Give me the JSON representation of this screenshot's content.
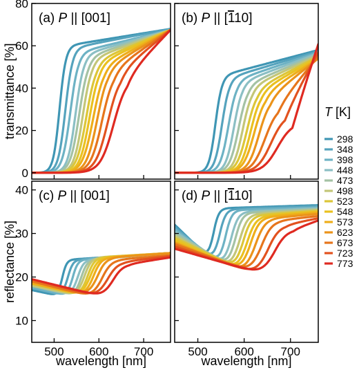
{
  "chart_data": [
    {
      "type": "line",
      "panel": "a",
      "label_prefix": "(a) ",
      "label_var": "P",
      "label_rel": " || [001]",
      "ylabel": "transmittance [%]",
      "xlim": [
        450,
        760
      ],
      "ylim": [
        -3,
        80
      ],
      "yticks": [
        0,
        20,
        40,
        60,
        80
      ],
      "xticks": [
        500,
        600,
        700
      ],
      "curve_model": "sigmoid",
      "series": [
        {
          "name": "298",
          "x0": 512,
          "w": 7,
          "A": 60.0,
          "B": 68.0
        },
        {
          "name": "348",
          "x0": 525,
          "w": 8,
          "A": 59.0,
          "B": 68.0
        },
        {
          "name": "398",
          "x0": 536,
          "w": 9,
          "A": 57.0,
          "B": 67.5
        },
        {
          "name": "448",
          "x0": 548,
          "w": 9,
          "A": 56.0,
          "B": 67.5
        },
        {
          "name": "473",
          "x0": 556,
          "w": 10,
          "A": 55.0,
          "B": 67.5
        },
        {
          "name": "498",
          "x0": 564,
          "w": 10,
          "A": 54.0,
          "B": 67.5
        },
        {
          "name": "523",
          "x0": 572,
          "w": 11,
          "A": 53.0,
          "B": 67.5
        },
        {
          "name": "548",
          "x0": 579,
          "w": 11,
          "A": 52.0,
          "B": 67.5
        },
        {
          "name": "573",
          "x0": 587,
          "w": 12,
          "A": 51.0,
          "B": 67.5
        },
        {
          "name": "623",
          "x0": 596,
          "w": 12,
          "A": 50.0,
          "B": 67.5
        },
        {
          "name": "673",
          "x0": 607,
          "w": 13,
          "A": 49.0,
          "B": 67.5
        },
        {
          "name": "723",
          "x0": 620,
          "w": 14,
          "A": 48.0,
          "B": 67.5
        },
        {
          "name": "773",
          "x0": 633,
          "w": 15,
          "A": 46.0,
          "B": 67.5
        }
      ]
    },
    {
      "type": "line",
      "panel": "b",
      "label_prefix": "(b) ",
      "label_var": "P",
      "label_rel": " || [",
      "label_bar": "1",
      "label_end": "10]",
      "xlim": [
        450,
        760
      ],
      "ylim": [
        -3,
        80
      ],
      "yticks": [
        0,
        20,
        40,
        60,
        80
      ],
      "xticks": [
        500,
        600,
        700
      ],
      "curve_model": "sigmoid",
      "series": [
        {
          "name": "298",
          "x0": 538,
          "w": 7,
          "A": 46.0,
          "B": 58.0
        },
        {
          "name": "348",
          "x0": 552,
          "w": 8,
          "A": 45.0,
          "B": 57.5
        },
        {
          "name": "398",
          "x0": 566,
          "w": 9,
          "A": 44.0,
          "B": 57.0
        },
        {
          "name": "448",
          "x0": 578,
          "w": 9,
          "A": 43.0,
          "B": 56.5
        },
        {
          "name": "473",
          "x0": 588,
          "w": 10,
          "A": 42.0,
          "B": 56.0
        },
        {
          "name": "498",
          "x0": 597,
          "w": 10,
          "A": 41.0,
          "B": 55.5
        },
        {
          "name": "523",
          "x0": 606,
          "w": 11,
          "A": 40.0,
          "B": 55.0
        },
        {
          "name": "548",
          "x0": 614,
          "w": 11,
          "A": 39.0,
          "B": 54.5
        },
        {
          "name": "573",
          "x0": 622,
          "w": 12,
          "A": 38.0,
          "B": 54.0
        },
        {
          "name": "623",
          "x0": 632,
          "w": 12,
          "A": 36.0,
          "B": 54.0
        },
        {
          "name": "673",
          "x0": 645,
          "w": 14,
          "A": 32.0,
          "B": 55.0
        },
        {
          "name": "723",
          "x0": 658,
          "w": 15,
          "A": 28.0,
          "B": 57.0
        },
        {
          "name": "773",
          "x0": 672,
          "w": 16,
          "A": 24.0,
          "B": 61.0
        }
      ]
    },
    {
      "type": "line",
      "panel": "c",
      "label_prefix": "(c) ",
      "label_var": "P",
      "label_rel": " || [001]",
      "ylabel": "reflectance [%]",
      "xlabel": "wavelength [nm]",
      "xlim": [
        450,
        760
      ],
      "ylim": [
        5,
        42
      ],
      "yticks": [
        10,
        20,
        30,
        40
      ],
      "xticks": [
        500,
        600,
        700
      ],
      "curve_model": "dip_step",
      "series": [
        {
          "name": "298",
          "x0": 518,
          "w": 5,
          "start": 17.0,
          "low": 15.5,
          "plateau": 24.0,
          "end": 25.5
        },
        {
          "name": "348",
          "x0": 530,
          "w": 6,
          "start": 17.5,
          "low": 15.5,
          "plateau": 24.0,
          "end": 25.5
        },
        {
          "name": "398",
          "x0": 541,
          "w": 6,
          "start": 17.5,
          "low": 15.5,
          "plateau": 24.0,
          "end": 25.5
        },
        {
          "name": "448",
          "x0": 552,
          "w": 7,
          "start": 18.0,
          "low": 15.5,
          "plateau": 24.0,
          "end": 25.5
        },
        {
          "name": "473",
          "x0": 560,
          "w": 7,
          "start": 18.0,
          "low": 15.5,
          "plateau": 24.0,
          "end": 25.5
        },
        {
          "name": "498",
          "x0": 567,
          "w": 8,
          "start": 18.0,
          "low": 15.5,
          "plateau": 24.5,
          "end": 25.5
        },
        {
          "name": "523",
          "x0": 574,
          "w": 8,
          "start": 18.5,
          "low": 15.5,
          "plateau": 24.5,
          "end": 25.5
        },
        {
          "name": "548",
          "x0": 580,
          "w": 9,
          "start": 18.5,
          "low": 15.5,
          "plateau": 24.5,
          "end": 25.5
        },
        {
          "name": "573",
          "x0": 587,
          "w": 9,
          "start": 18.5,
          "low": 15.5,
          "plateau": 24.5,
          "end": 25.5
        },
        {
          "name": "623",
          "x0": 596,
          "w": 10,
          "start": 19.0,
          "low": 15.5,
          "plateau": 24.5,
          "end": 25.5
        },
        {
          "name": "673",
          "x0": 606,
          "w": 11,
          "start": 19.0,
          "low": 15.0,
          "plateau": 24.0,
          "end": 25.0
        },
        {
          "name": "723",
          "x0": 618,
          "w": 12,
          "start": 19.5,
          "low": 15.0,
          "plateau": 23.5,
          "end": 24.8
        },
        {
          "name": "773",
          "x0": 630,
          "w": 12,
          "start": 19.5,
          "low": 15.0,
          "plateau": 23.0,
          "end": 24.5
        }
      ]
    },
    {
      "type": "line",
      "panel": "d",
      "label_prefix": "(d) ",
      "label_var": "P",
      "label_rel": " || [",
      "label_bar": "1",
      "label_end": "10]",
      "xlabel": "wavelength [nm]",
      "xlim": [
        450,
        760
      ],
      "ylim": [
        5,
        42
      ],
      "yticks": [
        10,
        20,
        30,
        40
      ],
      "xticks": [
        500,
        600,
        700
      ],
      "curve_model": "dip_step",
      "series": [
        {
          "name": "298",
          "x0": 533,
          "w": 6,
          "start": 32.0,
          "low": 23.5,
          "plateau": 35.8,
          "end": 36.5
        },
        {
          "name": "348",
          "x0": 546,
          "w": 7,
          "start": 31.5,
          "low": 23.0,
          "plateau": 35.6,
          "end": 36.3
        },
        {
          "name": "398",
          "x0": 559,
          "w": 7,
          "start": 31.0,
          "low": 22.5,
          "plateau": 35.4,
          "end": 36.0
        },
        {
          "name": "448",
          "x0": 571,
          "w": 8,
          "start": 30.5,
          "low": 22.0,
          "plateau": 35.0,
          "end": 35.8
        },
        {
          "name": "473",
          "x0": 580,
          "w": 8,
          "start": 30.0,
          "low": 22.0,
          "plateau": 34.8,
          "end": 35.6
        },
        {
          "name": "498",
          "x0": 589,
          "w": 9,
          "start": 29.5,
          "low": 21.5,
          "plateau": 34.5,
          "end": 35.4
        },
        {
          "name": "523",
          "x0": 597,
          "w": 9,
          "start": 29.0,
          "low": 21.5,
          "plateau": 34.2,
          "end": 35.2
        },
        {
          "name": "548",
          "x0": 605,
          "w": 10,
          "start": 28.5,
          "low": 21.0,
          "plateau": 34.0,
          "end": 35.0
        },
        {
          "name": "573",
          "x0": 613,
          "w": 10,
          "start": 28.0,
          "low": 21.0,
          "plateau": 33.8,
          "end": 34.8
        },
        {
          "name": "623",
          "x0": 623,
          "w": 11,
          "start": 27.8,
          "low": 20.5,
          "plateau": 33.5,
          "end": 34.5
        },
        {
          "name": "673",
          "x0": 636,
          "w": 12,
          "start": 27.5,
          "low": 20.5,
          "plateau": 33.0,
          "end": 34.0
        },
        {
          "name": "723",
          "x0": 650,
          "w": 13,
          "start": 27.0,
          "low": 20.0,
          "plateau": 32.0,
          "end": 33.5
        },
        {
          "name": "773",
          "x0": 664,
          "w": 14,
          "start": 26.5,
          "low": 20.0,
          "plateau": 31.0,
          "end": 33.0
        }
      ]
    }
  ],
  "legend": {
    "title_var": "T",
    "title_unit": " [K]",
    "entries": [
      "298",
      "348",
      "398",
      "448",
      "473",
      "498",
      "523",
      "548",
      "573",
      "623",
      "673",
      "723",
      "773"
    ],
    "colors": [
      "#3f96b4",
      "#55a3bd",
      "#6db2c4",
      "#8bbfc4",
      "#a4c2a4",
      "#c3c678",
      "#dcc638",
      "#eac120",
      "#eeae1a",
      "#eb931a",
      "#e6751c",
      "#e2521f",
      "#df2a21"
    ]
  }
}
